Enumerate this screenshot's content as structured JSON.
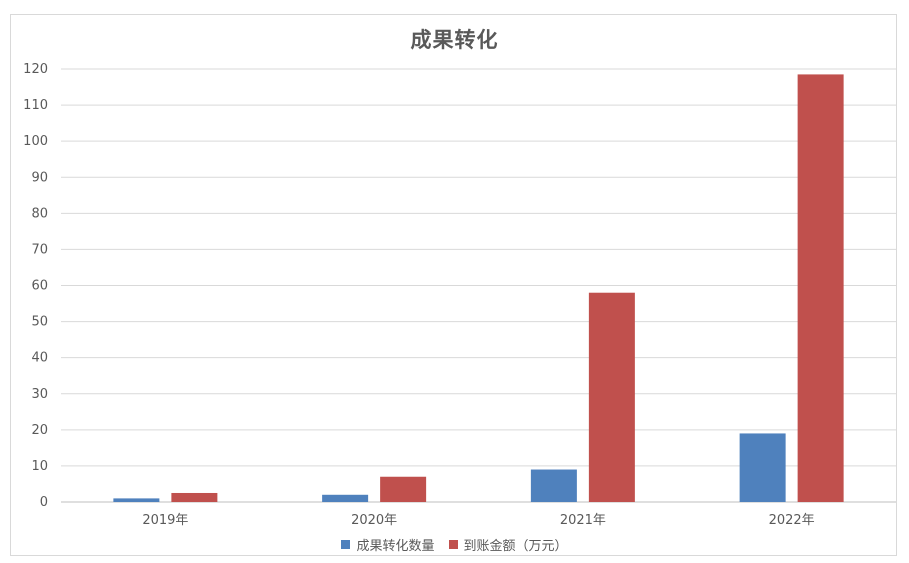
{
  "chart_data": {
    "type": "bar",
    "title": "成果转化",
    "categories": [
      "2019年",
      "2020年",
      "2021年",
      "2022年"
    ],
    "series": [
      {
        "name": "成果转化数量",
        "color": "#4f81bd",
        "values": [
          1,
          2,
          9,
          19
        ]
      },
      {
        "name": "到账金额（万元）",
        "color": "#c0504d",
        "values": [
          2.5,
          7,
          58,
          118.5
        ]
      }
    ],
    "xlabel": "",
    "ylabel": "",
    "ylim": [
      0,
      120
    ],
    "yticks": [
      0,
      10,
      20,
      30,
      40,
      50,
      60,
      70,
      80,
      90,
      100,
      110,
      120
    ],
    "grid": true,
    "legend_position": "bottom"
  }
}
